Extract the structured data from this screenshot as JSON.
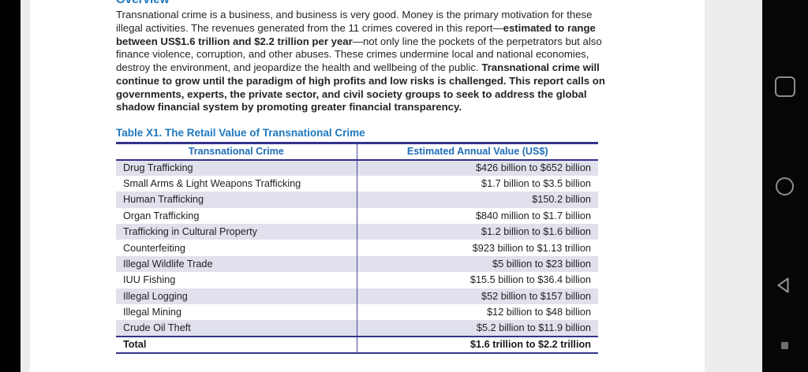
{
  "document": {
    "section_heading": "Overview",
    "paragraph_segments": [
      {
        "text": "Transnational crime is a business, and business is very good. Money is the primary motivation for these illegal activities. The revenues generated from the 11 crimes covered in this report—",
        "bold": false
      },
      {
        "text": "estimated to range between US$1.6 trillion and $2.2 trillion per year",
        "bold": true
      },
      {
        "text": "—not only line the pockets of the perpetrators but also finance violence, corruption, and other abuses. These crimes undermine local and national economies, destroy the environment, and jeopardize the health and wellbeing of the public. ",
        "bold": false
      },
      {
        "text": "Transnational crime will continue to grow until the paradigm of high profits and low risks is challenged. This report calls on governments, experts, the private sector, and civil society groups to seek to address the global shadow financial system by promoting greater financial transparency.",
        "bold": true
      }
    ],
    "table": {
      "title": "Table X1. The Retail Value of Transnational Crime",
      "columns": [
        "Transnational Crime",
        "Estimated Annual Value (US$)"
      ],
      "rows": [
        [
          "Drug Trafficking",
          "$426 billion to $652 billion"
        ],
        [
          "Small Arms & Light Weapons Trafficking",
          "$1.7 billion to $3.5 billion"
        ],
        [
          "Human Trafficking",
          "$150.2 billion"
        ],
        [
          "Organ Trafficking",
          "$840 million to $1.7 billion"
        ],
        [
          "Trafficking in Cultural Property",
          "$1.2 billion to $1.6 billion"
        ],
        [
          "Counterfeiting",
          "$923 billion to $1.13 trillion"
        ],
        [
          "Illegal Wildlife Trade",
          "$5 billion to $23 billion"
        ],
        [
          "IUU Fishing",
          "$15.5 billion to $36.4 billion"
        ],
        [
          "Illegal Logging",
          "$52 billion to $157 billion"
        ],
        [
          "Illegal Mining",
          "$12 billion to $48 billion"
        ],
        [
          "Crude Oil Theft",
          "$5.2 billion to $11.9 billion"
        ]
      ],
      "total_row": [
        "Total",
        "$1.6 trillion to $2.2 trillion"
      ]
    }
  },
  "navigation_bar": {
    "icons": [
      "recents-square-icon",
      "home-circle-icon",
      "back-triangle-icon",
      "nav-hint-dot"
    ]
  },
  "colors": {
    "heading_blue": "#1e78bd",
    "table_header_blue": "#1e6db8",
    "table_border": "#33338a",
    "row_stripe": "#e1e1ed",
    "body_text": "#262323",
    "nav_icon_gray": "#8e8e8e"
  }
}
